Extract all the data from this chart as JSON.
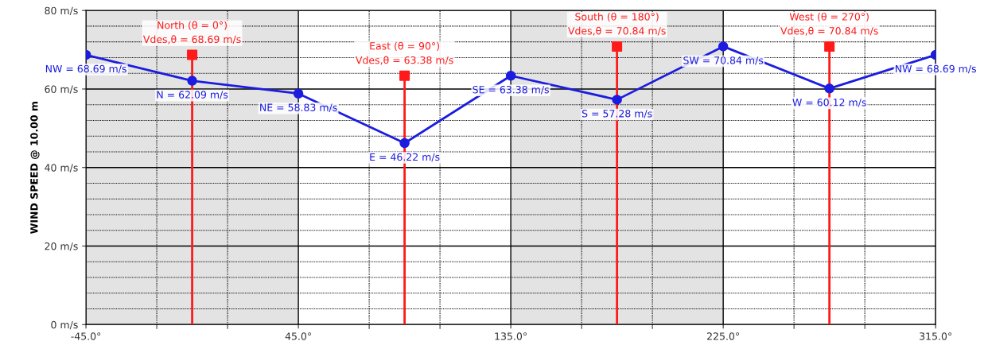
{
  "chart_data": {
    "type": "line",
    "ylabel": "WIND SPEED @ 10.00 m",
    "xlim": [
      -45,
      315
    ],
    "ylim": [
      0,
      80
    ],
    "xticks": [
      {
        "value": -45,
        "label": "-45.0°"
      },
      {
        "value": -15,
        "label": null
      },
      {
        "value": 15,
        "label": null
      },
      {
        "value": 45,
        "label": "45.0°"
      },
      {
        "value": 75,
        "label": null
      },
      {
        "value": 105,
        "label": null
      },
      {
        "value": 135,
        "label": "135.0°"
      },
      {
        "value": 165,
        "label": null
      },
      {
        "value": 195,
        "label": null
      },
      {
        "value": 225,
        "label": "225.0°"
      },
      {
        "value": 255,
        "label": null
      },
      {
        "value": 285,
        "label": null
      },
      {
        "value": 315,
        "label": "315.0°"
      }
    ],
    "yticks": [
      {
        "value": 0,
        "label": "0 m/s"
      },
      {
        "value": 4,
        "label": null
      },
      {
        "value": 8,
        "label": null
      },
      {
        "value": 12,
        "label": null
      },
      {
        "value": 16,
        "label": null
      },
      {
        "value": 20,
        "label": "20 m/s"
      },
      {
        "value": 24,
        "label": null
      },
      {
        "value": 28,
        "label": null
      },
      {
        "value": 32,
        "label": null
      },
      {
        "value": 36,
        "label": null
      },
      {
        "value": 40,
        "label": "40 m/s"
      },
      {
        "value": 44,
        "label": null
      },
      {
        "value": 48,
        "label": null
      },
      {
        "value": 52,
        "label": null
      },
      {
        "value": 56,
        "label": null
      },
      {
        "value": 60,
        "label": "60 m/s"
      },
      {
        "value": 64,
        "label": null
      },
      {
        "value": 68,
        "label": null
      },
      {
        "value": 72,
        "label": null
      },
      {
        "value": 76,
        "label": null
      },
      {
        "value": 80,
        "label": "80 m/s"
      }
    ],
    "grid": true,
    "bands": [
      {
        "axis": "x",
        "from": -45,
        "to": 45,
        "color": "#e3e3e3"
      },
      {
        "axis": "x",
        "from": 135,
        "to": 225,
        "color": "#e3e3e3"
      }
    ],
    "series": [
      {
        "color": "#1c1ce0",
        "marker": "circle",
        "x": [
          -45,
          0,
          45,
          90,
          135,
          180,
          225,
          270,
          315
        ],
        "values": [
          68.69,
          62.09,
          58.83,
          46.22,
          63.38,
          57.28,
          70.84,
          60.12,
          68.69
        ],
        "value_labels": [
          "NW = 68.69 m/s",
          "N = 62.09 m/s",
          "NE = 58.83 m/s",
          "E = 46.22 m/s",
          "SE = 63.38 m/s",
          "S = 57.28 m/s",
          "SW = 70.84 m/s",
          "W = 60.12 m/s",
          "NW = 68.69 m/s"
        ]
      },
      {
        "type": "lollipop",
        "color": "#ff1a1a",
        "marker": "square",
        "x": [
          0,
          90,
          180,
          270
        ],
        "values": [
          68.69,
          63.38,
          70.84,
          70.84
        ],
        "value_labels": [
          "North (θ = 0°)\nVdes,θ = 68.69 m/s",
          "East (θ = 90°)\nVdes,θ = 63.38 m/s",
          "South (θ = 180°)\nVdes,θ = 70.84 m/s",
          "West (θ = 270°)\nVdes,θ = 70.84 m/s"
        ]
      }
    ]
  }
}
